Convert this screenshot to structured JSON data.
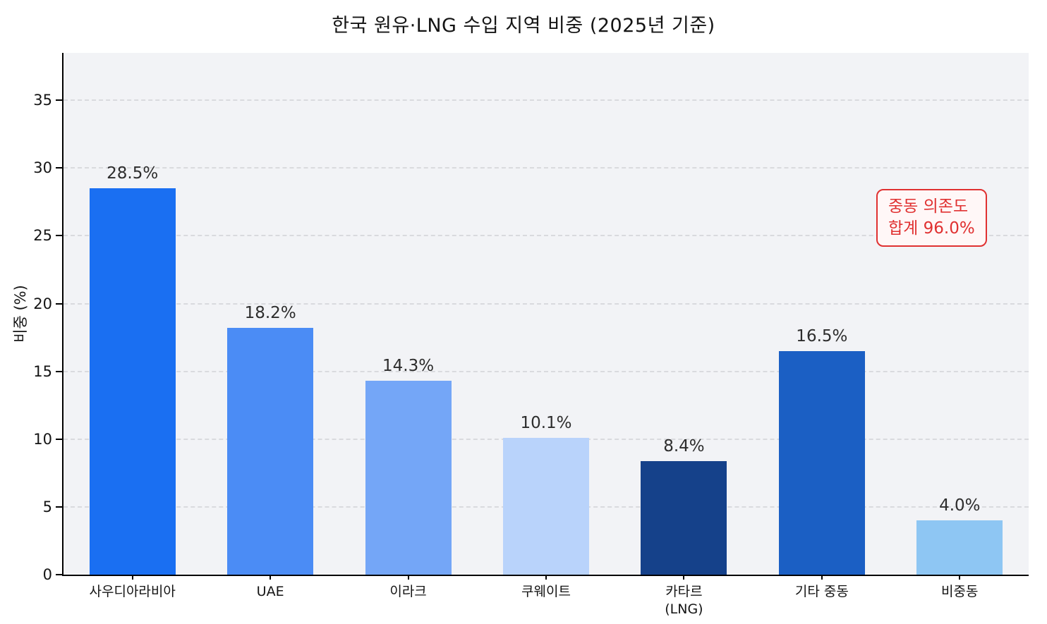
{
  "chart_data": {
    "type": "bar",
    "title": "한국 원유·LNG 수입 지역 비중 (2025년 기준)",
    "ylabel": "비중 (%)",
    "categories": [
      "사우디아라비아",
      "UAE",
      "이라크",
      "쿠웨이트",
      "카타르\n(LNG)",
      "기타 중동",
      "비중동"
    ],
    "values": [
      28.5,
      18.2,
      14.3,
      10.1,
      8.4,
      16.5,
      4.0
    ],
    "value_labels": [
      "28.5%",
      "18.2%",
      "14.3%",
      "10.1%",
      "8.4%",
      "16.5%",
      "4.0%"
    ],
    "bar_colors": [
      "#1a6ff2",
      "#4b8cf5",
      "#74a6f7",
      "#b9d3fb",
      "#15418a",
      "#1b5fc4",
      "#8ec6f3"
    ],
    "ylim": [
      0,
      38.5
    ],
    "yticks": [
      0,
      5,
      10,
      15,
      20,
      25,
      30,
      35
    ],
    "grid": "dashed-horizontal",
    "legend": "none",
    "annotation": {
      "lines": [
        "중동 의존도",
        "합계 96.0%"
      ],
      "color": "#e03131"
    }
  }
}
